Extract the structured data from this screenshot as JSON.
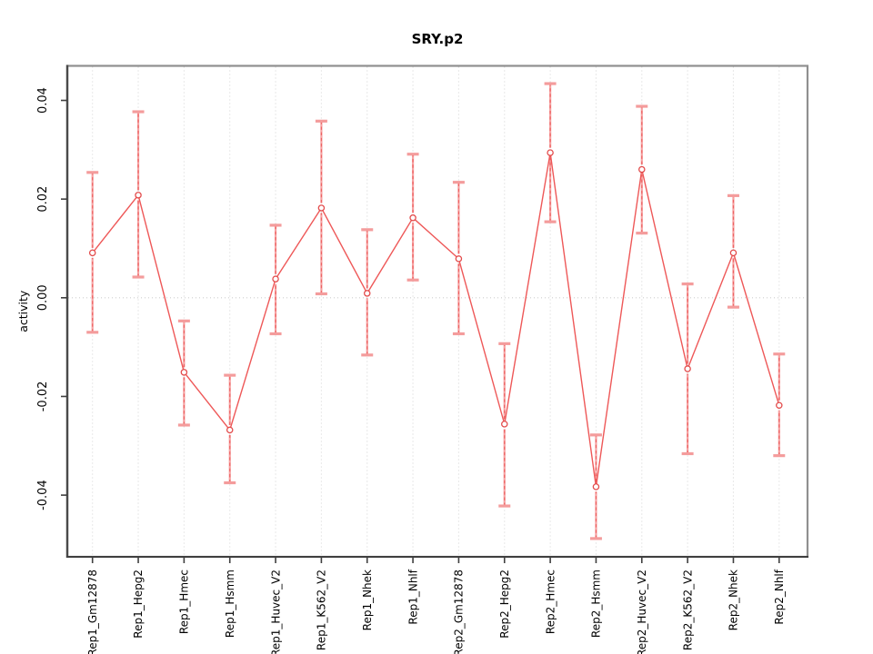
{
  "figure": {
    "title": "SRY.p2",
    "background": "#ffffff"
  },
  "chart_data": {
    "type": "line",
    "title": "SRY.p2",
    "xlabel": "",
    "ylabel": "activity",
    "legend": "none",
    "marker": "open-circle",
    "error_bars": true,
    "categories": [
      "Rep1_Gm12878",
      "Rep1_Hepg2",
      "Rep1_Hmec",
      "Rep1_Hsmm",
      "Rep1_Huvec_V2",
      "Rep1_K562_V2",
      "Rep1_Nhek",
      "Rep1_Nhlf",
      "Rep2_Gm12878",
      "Rep2_Hepg2",
      "Rep2_Hmec",
      "Rep2_Hsmm",
      "Rep2_Huvec_V2",
      "Rep2_K562_V2",
      "Rep2_Nhek",
      "Rep2_Nhlf"
    ],
    "series": [
      {
        "name": "SRY.p2 activity",
        "values": [
          0.0091,
          0.0208,
          -0.0151,
          -0.0268,
          0.0038,
          0.0182,
          0.0009,
          0.0162,
          0.0079,
          -0.0256,
          0.0294,
          -0.0383,
          0.026,
          -0.0144,
          0.0091,
          -0.0218
        ],
        "err_low": [
          -0.007,
          0.0042,
          -0.0258,
          -0.0375,
          -0.0073,
          0.0008,
          -0.0116,
          0.0036,
          -0.0073,
          -0.0422,
          0.0154,
          -0.0488,
          0.0131,
          -0.0316,
          -0.0019,
          -0.032
        ],
        "err_high": [
          0.0254,
          0.0377,
          -0.0047,
          -0.0157,
          0.0147,
          0.0358,
          0.0138,
          0.0291,
          0.0234,
          -0.0093,
          0.0434,
          -0.0278,
          0.0388,
          0.0028,
          0.0207,
          -0.0114
        ]
      }
    ],
    "ylim": [
      -0.0525,
      0.047
    ],
    "yticks": [
      -0.04,
      -0.02,
      0.0,
      0.02,
      0.04
    ],
    "ytick_labels": [
      "-0.04",
      "-0.02",
      "0.00",
      "0.02",
      "0.04"
    ],
    "grid": {
      "vertical": "dotted line at each category",
      "horizontal": "dotted line at zero only"
    },
    "colors": {
      "line": "#ee5858",
      "marker_stroke": "#e34c4c",
      "marker_fill": "#ffffff",
      "error_bar": "#f6a2a2",
      "error_bar_dash": "#ed6262",
      "error_cap": "#f49c9c",
      "grid": "#d6d6d6",
      "zero_line": "#cdcdcd",
      "box": "#8f8f8f",
      "axis": "#3f3f3f",
      "text": "#000000"
    }
  }
}
